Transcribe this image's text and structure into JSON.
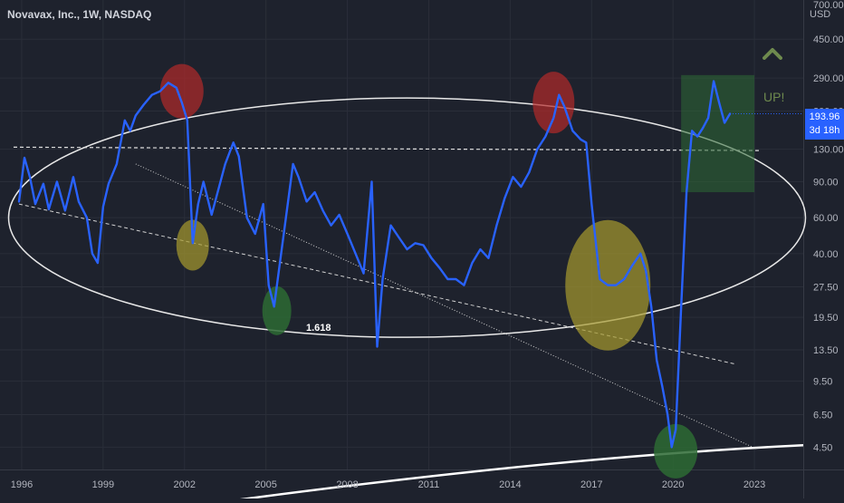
{
  "header": {
    "title": "Novavax, Inc., 1W, NASDAQ"
  },
  "price_scale": {
    "currency": "USD",
    "top_tick": "700.00"
  },
  "current_price": {
    "value": "193.96",
    "countdown": "3d 18h"
  },
  "annotations": {
    "up_text": "UP!",
    "fib_text": "1.618",
    "arrow_icon": "chevron-up-icon"
  },
  "colors": {
    "background": "#1e222d",
    "price_line": "#2962ff",
    "axis_text": "#b2b5be",
    "red_zone": "#b22a2a",
    "yellow_zone": "#a69a2e",
    "green_zone": "#2d6a34",
    "badge": "#2962ff"
  },
  "chart_data": {
    "type": "line",
    "title": "Novavax, Inc., 1W, NASDAQ",
    "ylabel": "USD",
    "y_scale": "log",
    "ylim": [
      3.5,
      700
    ],
    "xlim": [
      1995.2,
      2024.8
    ],
    "x_ticks": [
      "1996",
      "1999",
      "2002",
      "2005",
      "2008",
      "2011",
      "2014",
      "2017",
      "2020",
      "2023"
    ],
    "y_ticks": [
      "4.50",
      "6.50",
      "9.50",
      "13.50",
      "19.50",
      "27.50",
      "40.00",
      "60.00",
      "90.00",
      "130.00",
      "200.00",
      "290.00",
      "450.00"
    ],
    "series": [
      {
        "x": [
          1995.9,
          1996.1,
          1996.3,
          1996.5,
          1996.8,
          1997.0,
          1997.3,
          1997.6,
          1997.9,
          1998.1,
          1998.4,
          1998.6,
          1998.8,
          1999.0,
          1999.2,
          1999.5,
          1999.8,
          2000.0,
          2000.2,
          2000.5,
          2000.8,
          2001.1,
          2001.4,
          2001.7,
          2001.9,
          2002.1,
          2002.3,
          2002.5,
          2002.7,
          2003.0,
          2003.2,
          2003.5,
          2003.8,
          2004.0,
          2004.3,
          2004.6,
          2004.9,
          2005.1,
          2005.3,
          2005.5,
          2005.7,
          2006.0,
          2006.2,
          2006.5,
          2006.8,
          2007.1,
          2007.4,
          2007.7,
          2008.0,
          2008.3,
          2008.6,
          2008.9,
          2009.1,
          2009.3,
          2009.6,
          2009.9,
          2010.2,
          2010.5,
          2010.8,
          2011.1,
          2011.4,
          2011.7,
          2012.0,
          2012.3,
          2012.6,
          2012.9,
          2013.2,
          2013.5,
          2013.8,
          2014.1,
          2014.4,
          2014.7,
          2015.0,
          2015.3,
          2015.6,
          2015.8,
          2016.0,
          2016.3,
          2016.6,
          2016.8,
          2017.0,
          2017.3,
          2017.6,
          2017.9,
          2018.2,
          2018.5,
          2018.8,
          2019.0,
          2019.2,
          2019.4,
          2019.6,
          2019.8,
          2019.95,
          2020.1,
          2020.3,
          2020.5,
          2020.7,
          2020.9,
          2021.1,
          2021.3,
          2021.5,
          2021.7,
          2021.9,
          2022.1
        ],
        "y": [
          72,
          118,
          95,
          70,
          88,
          66,
          90,
          65,
          95,
          72,
          60,
          40,
          36,
          68,
          88,
          110,
          180,
          160,
          190,
          215,
          240,
          250,
          275,
          260,
          220,
          180,
          45,
          70,
          90,
          62,
          78,
          110,
          140,
          120,
          60,
          50,
          70,
          28,
          22,
          35,
          55,
          110,
          95,
          72,
          80,
          65,
          55,
          62,
          50,
          40,
          32,
          90,
          14,
          30,
          55,
          48,
          42,
          45,
          44,
          38,
          34,
          30,
          30,
          28,
          36,
          42,
          38,
          55,
          75,
          95,
          85,
          100,
          130,
          150,
          185,
          240,
          210,
          160,
          145,
          140,
          70,
          30,
          28,
          28,
          30,
          35,
          40,
          33,
          22,
          12,
          9,
          6.5,
          4.5,
          5.5,
          22,
          80,
          160,
          150,
          165,
          185,
          280,
          220,
          175,
          194
        ]
      }
    ],
    "zones": [
      {
        "kind": "top",
        "x": 2001.9,
        "y": 250
      },
      {
        "kind": "top",
        "x": 2015.6,
        "y": 220
      },
      {
        "kind": "support",
        "x": 2002.3,
        "y": 44
      },
      {
        "kind": "support",
        "x": 2017.6,
        "y": 28
      },
      {
        "kind": "bottom",
        "x": 2005.4,
        "y": 21
      },
      {
        "kind": "bottom",
        "x": 2020.1,
        "y": 4.3
      }
    ]
  }
}
